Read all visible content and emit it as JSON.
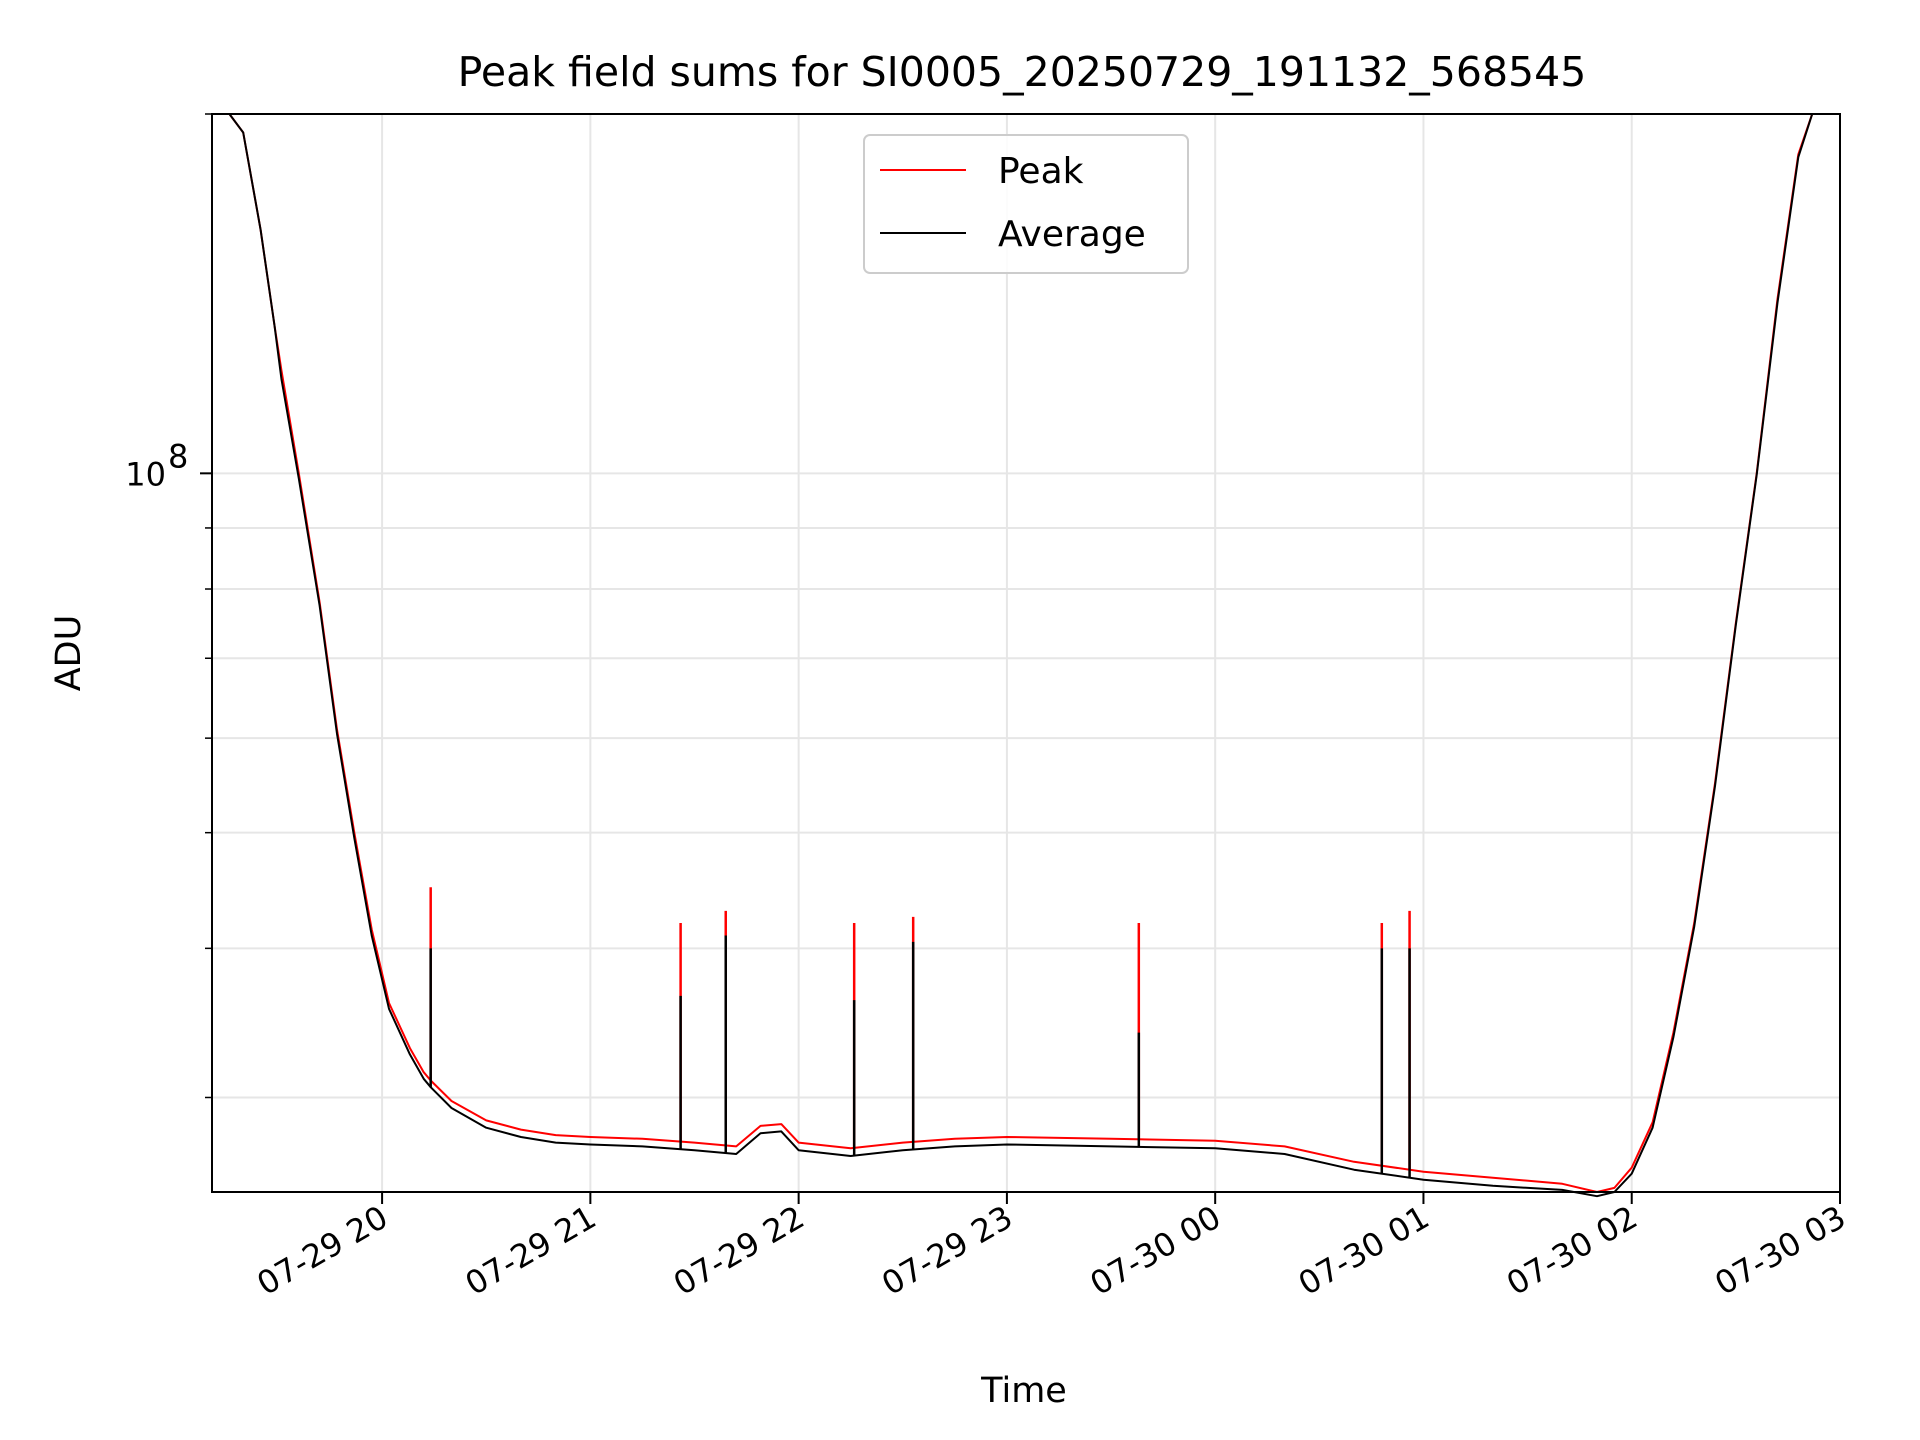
{
  "chart_data": {
    "type": "line",
    "title": "Peak field sums for SI0005_20250729_191132_568545",
    "xlabel": "Time",
    "ylabel": "ADU",
    "x_type": "time",
    "xlim": [
      "2025-07-29 19:11",
      "2025-07-30 03:00"
    ],
    "ylim": [
      25000000,
      200000000
    ],
    "y_scale": "log",
    "grid": true,
    "legend_position": "top-center",
    "x_ticks": [
      {
        "label": "07-29 20",
        "value": "2025-07-29 20:00"
      },
      {
        "label": "07-29 21",
        "value": "2025-07-29 21:00"
      },
      {
        "label": "07-29 22",
        "value": "2025-07-29 22:00"
      },
      {
        "label": "07-29 23",
        "value": "2025-07-29 23:00"
      },
      {
        "label": "07-30 00",
        "value": "2025-07-30 00:00"
      },
      {
        "label": "07-30 01",
        "value": "2025-07-30 01:00"
      },
      {
        "label": "07-30 02",
        "value": "2025-07-30 02:00"
      },
      {
        "label": "07-30 03",
        "value": "2025-07-30 03:00"
      }
    ],
    "y_major_ticks": [
      {
        "base": "10",
        "exponent": "8",
        "value": 100000000
      }
    ],
    "y_minor_ticks": [
      30000000,
      40000000,
      50000000,
      60000000,
      70000000,
      80000000,
      90000000,
      200000000
    ],
    "series": [
      {
        "name": "Peak",
        "color": "#ff0000",
        "points": [
          [
            "2025-07-29 19:11",
            200000000
          ],
          [
            "2025-07-29 19:16",
            200000000
          ],
          [
            "2025-07-29 19:20",
            193000000
          ],
          [
            "2025-07-29 19:25",
            160000000
          ],
          [
            "2025-07-29 19:29",
            133000000
          ],
          [
            "2025-07-29 19:31",
            122000000
          ],
          [
            "2025-07-29 19:36",
            100000000
          ],
          [
            "2025-07-29 19:42",
            78000000
          ],
          [
            "2025-07-29 19:47",
            61000000
          ],
          [
            "2025-07-29 19:52",
            50000000
          ],
          [
            "2025-07-29 19:57",
            41500000
          ],
          [
            "2025-07-29 20:02",
            36000000
          ],
          [
            "2025-07-29 20:08",
            33000000
          ],
          [
            "2025-07-29 20:12",
            31500000
          ],
          [
            "2025-07-29 20:14",
            31000000
          ],
          [
            "2025-07-29 20:20",
            29800000
          ],
          [
            "2025-07-29 20:30",
            28700000
          ],
          [
            "2025-07-29 20:40",
            28200000
          ],
          [
            "2025-07-29 20:50",
            27900000
          ],
          [
            "2025-07-29 21:00",
            27800000
          ],
          [
            "2025-07-29 21:15",
            27700000
          ],
          [
            "2025-07-29 21:30",
            27500000
          ],
          [
            "2025-07-29 21:42",
            27300000
          ],
          [
            "2025-07-29 21:49",
            28400000
          ],
          [
            "2025-07-29 21:55",
            28500000
          ],
          [
            "2025-07-29 22:00",
            27500000
          ],
          [
            "2025-07-29 22:15",
            27200000
          ],
          [
            "2025-07-29 22:30",
            27500000
          ],
          [
            "2025-07-29 22:45",
            27700000
          ],
          [
            "2025-07-29 23:00",
            27800000
          ],
          [
            "2025-07-29 23:30",
            27700000
          ],
          [
            "2025-07-30 00:00",
            27600000
          ],
          [
            "2025-07-30 00:20",
            27300000
          ],
          [
            "2025-07-30 00:40",
            26500000
          ],
          [
            "2025-07-30 01:00",
            26000000
          ],
          [
            "2025-07-30 01:20",
            25700000
          ],
          [
            "2025-07-30 01:40",
            25400000
          ],
          [
            "2025-07-30 01:50",
            25000000
          ],
          [
            "2025-07-30 01:55",
            25200000
          ],
          [
            "2025-07-30 02:00",
            26200000
          ],
          [
            "2025-07-30 02:06",
            28600000
          ],
          [
            "2025-07-30 02:12",
            34000000
          ],
          [
            "2025-07-30 02:18",
            42000000
          ],
          [
            "2025-07-30 02:24",
            55000000
          ],
          [
            "2025-07-30 02:30",
            75000000
          ],
          [
            "2025-07-30 02:36",
            100000000
          ],
          [
            "2025-07-30 02:42",
            140000000
          ],
          [
            "2025-07-30 02:48",
            185000000
          ],
          [
            "2025-07-30 02:52",
            200000000
          ],
          [
            "2025-07-30 03:00",
            200000000
          ]
        ],
        "spikes": [
          [
            "2025-07-29 20:14",
            45000000
          ],
          [
            "2025-07-29 21:26",
            42000000
          ],
          [
            "2025-07-29 21:39",
            43000000
          ],
          [
            "2025-07-29 22:16",
            42000000
          ],
          [
            "2025-07-29 22:33",
            42500000
          ],
          [
            "2025-07-29 23:38",
            42000000
          ],
          [
            "2025-07-30 00:48",
            42000000
          ],
          [
            "2025-07-30 00:56",
            43000000
          ]
        ]
      },
      {
        "name": "Average",
        "color": "#000000",
        "points": [
          [
            "2025-07-29 19:11",
            200000000
          ],
          [
            "2025-07-29 19:16",
            200000000
          ],
          [
            "2025-07-29 19:20",
            193000000
          ],
          [
            "2025-07-29 19:25",
            160000000
          ],
          [
            "2025-07-29 19:29",
            133000000
          ],
          [
            "2025-07-29 19:31",
            120000000
          ],
          [
            "2025-07-29 19:36",
            99000000
          ],
          [
            "2025-07-29 19:42",
            77500000
          ],
          [
            "2025-07-29 19:47",
            60500000
          ],
          [
            "2025-07-29 19:52",
            49500000
          ],
          [
            "2025-07-29 19:57",
            41000000
          ],
          [
            "2025-07-29 20:02",
            35600000
          ],
          [
            "2025-07-29 20:08",
            32600000
          ],
          [
            "2025-07-29 20:12",
            31100000
          ],
          [
            "2025-07-29 20:14",
            30600000
          ],
          [
            "2025-07-29 20:20",
            29400000
          ],
          [
            "2025-07-29 20:30",
            28300000
          ],
          [
            "2025-07-29 20:40",
            27800000
          ],
          [
            "2025-07-29 20:50",
            27500000
          ],
          [
            "2025-07-29 21:00",
            27400000
          ],
          [
            "2025-07-29 21:15",
            27300000
          ],
          [
            "2025-07-29 21:30",
            27100000
          ],
          [
            "2025-07-29 21:42",
            26900000
          ],
          [
            "2025-07-29 21:49",
            28000000
          ],
          [
            "2025-07-29 21:55",
            28100000
          ],
          [
            "2025-07-29 22:00",
            27100000
          ],
          [
            "2025-07-29 22:15",
            26800000
          ],
          [
            "2025-07-29 22:30",
            27100000
          ],
          [
            "2025-07-29 22:45",
            27300000
          ],
          [
            "2025-07-29 23:00",
            27400000
          ],
          [
            "2025-07-29 23:30",
            27300000
          ],
          [
            "2025-07-30 00:00",
            27200000
          ],
          [
            "2025-07-30 00:20",
            26900000
          ],
          [
            "2025-07-30 00:40",
            26100000
          ],
          [
            "2025-07-30 01:00",
            25600000
          ],
          [
            "2025-07-30 01:20",
            25300000
          ],
          [
            "2025-07-30 01:40",
            25100000
          ],
          [
            "2025-07-30 01:50",
            24800000
          ],
          [
            "2025-07-30 01:55",
            25000000
          ],
          [
            "2025-07-30 02:00",
            25900000
          ],
          [
            "2025-07-30 02:06",
            28300000
          ],
          [
            "2025-07-30 02:12",
            33700000
          ],
          [
            "2025-07-30 02:18",
            41700000
          ],
          [
            "2025-07-30 02:24",
            54700000
          ],
          [
            "2025-07-30 02:30",
            74700000
          ],
          [
            "2025-07-30 02:36",
            99700000
          ],
          [
            "2025-07-30 02:42",
            139000000
          ],
          [
            "2025-07-30 02:48",
            184000000
          ],
          [
            "2025-07-30 02:52",
            200000000
          ],
          [
            "2025-07-30 03:00",
            200000000
          ]
        ],
        "spikes": [
          [
            "2025-07-29 20:14",
            40000000
          ],
          [
            "2025-07-29 21:26",
            36500000
          ],
          [
            "2025-07-29 21:39",
            41000000
          ],
          [
            "2025-07-29 22:16",
            36200000
          ],
          [
            "2025-07-29 22:33",
            40500000
          ],
          [
            "2025-07-29 23:38",
            34000000
          ],
          [
            "2025-07-30 00:48",
            40000000
          ],
          [
            "2025-07-30 00:56",
            40000000
          ]
        ]
      }
    ]
  }
}
